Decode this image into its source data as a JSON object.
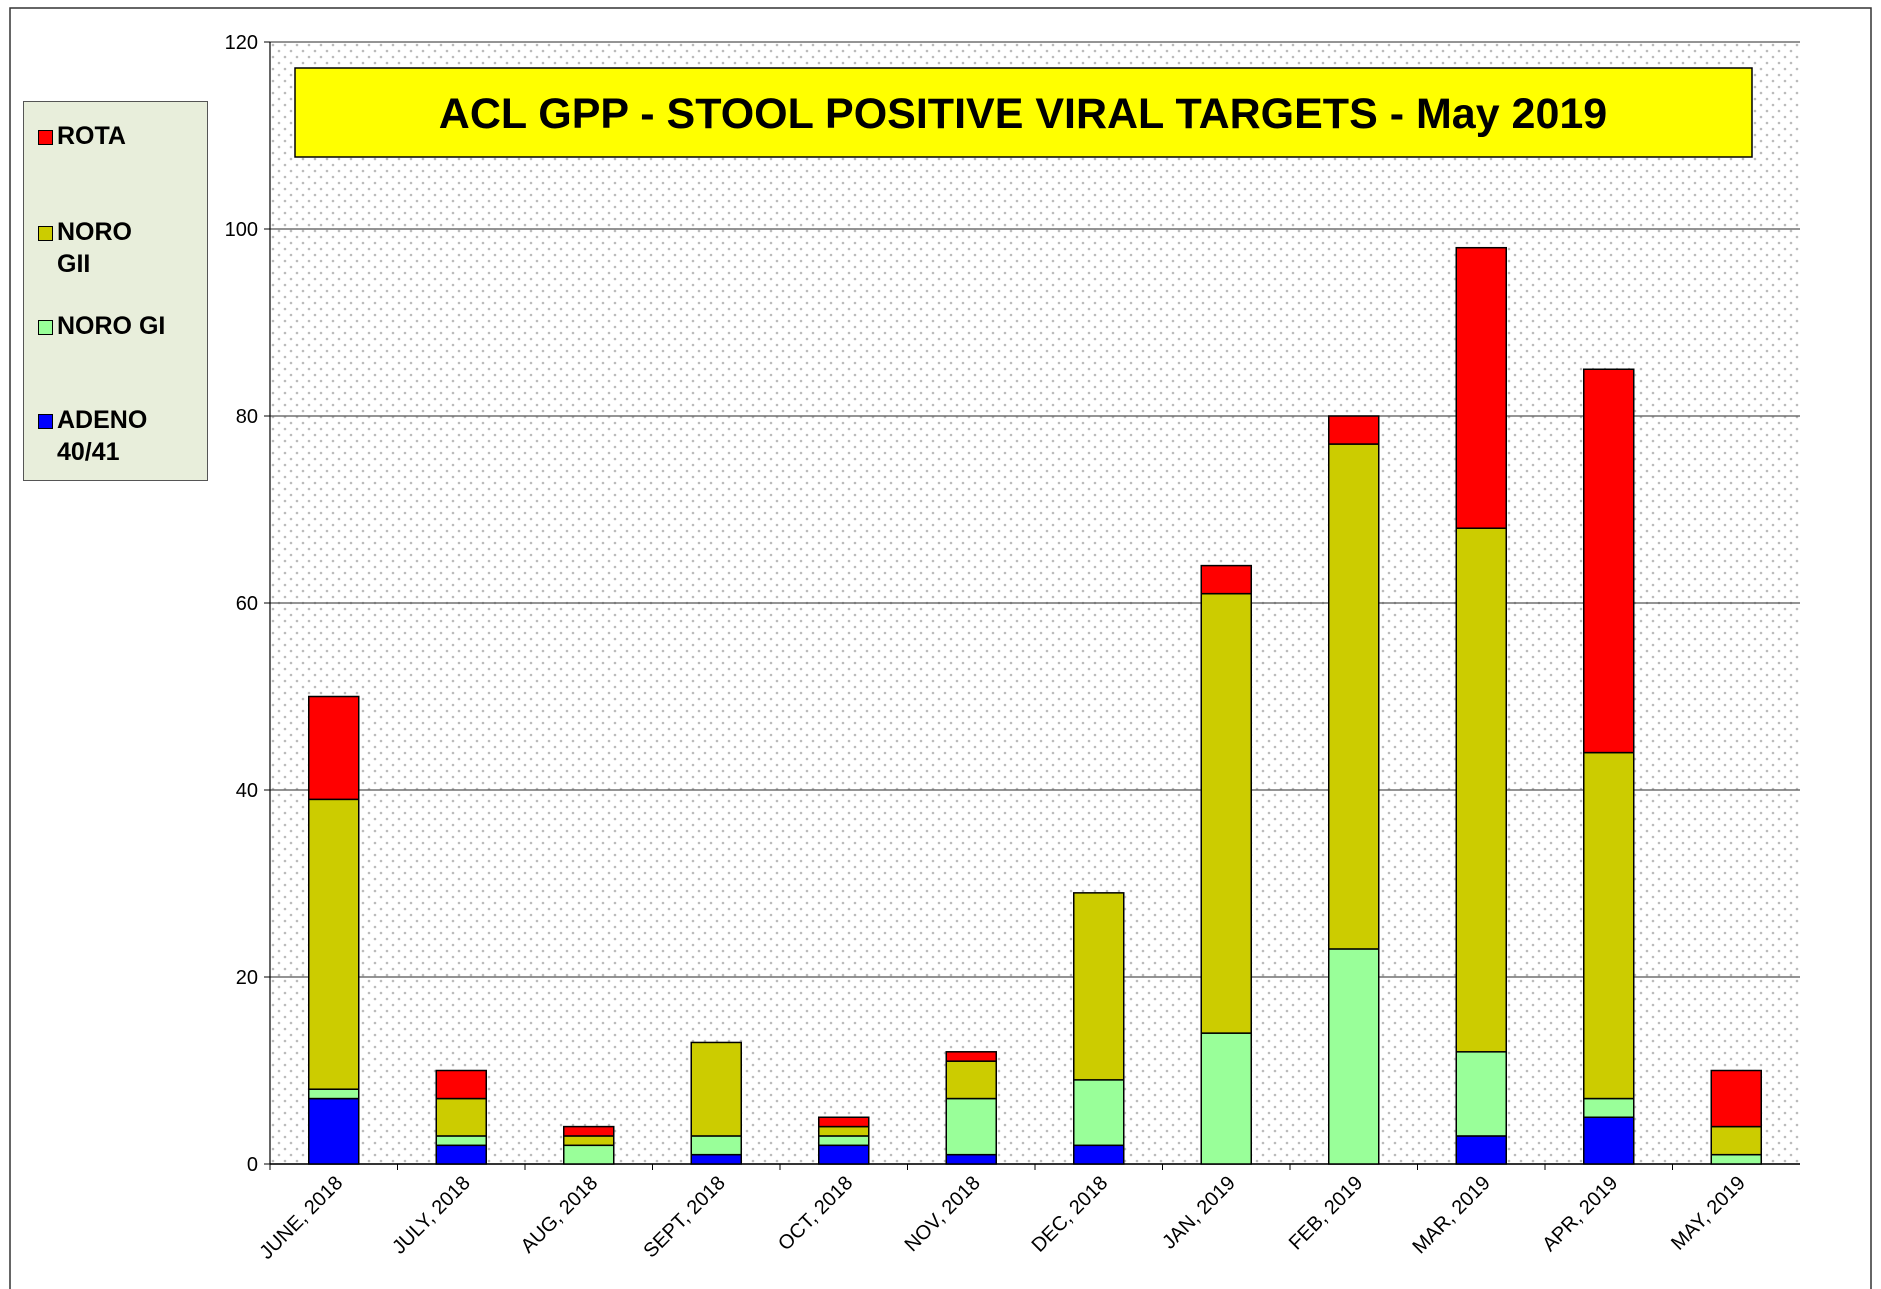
{
  "chart_data": {
    "type": "stacked_bar",
    "title": "ACL GPP - STOOL POSITIVE VIRAL TARGETS - May 2019",
    "categories": [
      "JUNE, 2018",
      "JULY, 2018",
      "AUG, 2018",
      "SEPT, 2018",
      "OCT, 2018",
      "NOV, 2018",
      "DEC, 2018",
      "JAN, 2019",
      "FEB, 2019",
      "MAR, 2019",
      "APR, 2019",
      "MAY, 2019"
    ],
    "series": [
      {
        "name": "ADENO 40/41",
        "color": "#0000ff",
        "values": [
          7,
          2,
          0,
          1,
          2,
          1,
          2,
          0,
          0,
          3,
          5,
          0
        ]
      },
      {
        "name": "NORO GI",
        "color": "#99ff99",
        "values": [
          1,
          1,
          2,
          2,
          1,
          6,
          7,
          14,
          23,
          9,
          2,
          1
        ]
      },
      {
        "name": "NORO GII",
        "color": "#cccc00",
        "values": [
          31,
          4,
          1,
          10,
          1,
          4,
          20,
          47,
          54,
          56,
          37,
          3
        ]
      },
      {
        "name": "ROTA",
        "color": "#ff0000",
        "values": [
          11,
          3,
          1,
          0,
          1,
          1,
          0,
          3,
          3,
          30,
          41,
          6
        ]
      }
    ],
    "ylim": [
      0,
      120
    ],
    "yticks": [
      0,
      20,
      40,
      60,
      80,
      100,
      120
    ],
    "grid": true,
    "legend": "left"
  }
}
